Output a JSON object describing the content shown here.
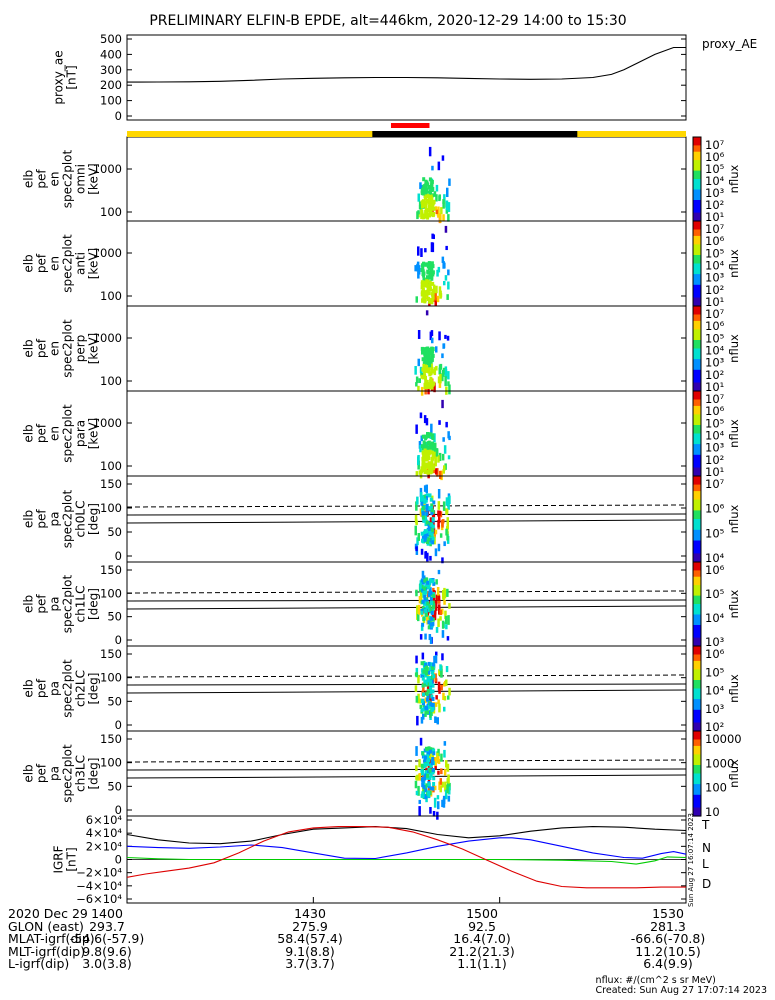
{
  "chart_data": {
    "title": "PRELIMINARY ELFIN-B EPDE, alt=446km, 2020-12-29 14:00 to 15:30",
    "time_ticks": [
      "1400",
      "1430",
      "1500",
      "1530"
    ],
    "date_label": "2020 Dec 29",
    "panels": [
      {
        "type": "line",
        "ylabel": [
          "proxy_ae",
          "[nT]"
        ],
        "yticks": [
          "500",
          "400",
          "300",
          "200",
          "100",
          "0"
        ],
        "ylim": [
          0,
          500
        ],
        "series": [
          {
            "name": "proxy_AE",
            "color": "#000000",
            "x": [
              0,
              2,
              5,
              10,
              15,
              20,
              25,
              30,
              35,
              40,
              45,
              50,
              55,
              60,
              65,
              70,
              75,
              78,
              80,
              82,
              85,
              88,
              90
            ],
            "y": [
              220,
              220,
              221,
              222,
              225,
              232,
              240,
              245,
              248,
              250,
              250,
              248,
              244,
              240,
              238,
              240,
              250,
              270,
              300,
              340,
              400,
              445,
              445
            ]
          }
        ]
      },
      {
        "type": "heatmap",
        "ylabel": [
          "elb",
          "pef",
          "en",
          "spec2plot",
          "omni",
          "[keV]"
        ],
        "yticks": [
          "1000",
          "100"
        ],
        "zlabel": "nflux",
        "zticks": [
          "10⁷",
          "10⁶",
          "10⁵",
          "10⁴",
          "10³",
          "10²",
          "10¹"
        ]
      },
      {
        "type": "heatmap",
        "ylabel": [
          "elb",
          "pef",
          "en",
          "spec2plot",
          "anti",
          "[keV]"
        ],
        "yticks": [
          "1000",
          "100"
        ],
        "zlabel": "nflux",
        "zticks": [
          "10⁷",
          "10⁶",
          "10⁵",
          "10⁴",
          "10³",
          "10²",
          "10¹"
        ]
      },
      {
        "type": "heatmap",
        "ylabel": [
          "elb",
          "pef",
          "en",
          "spec2plot",
          "perp",
          "[keV]"
        ],
        "yticks": [
          "1000",
          "100"
        ],
        "zlabel": "nflux",
        "zticks": [
          "10⁷",
          "10⁶",
          "10⁵",
          "10⁴",
          "10³",
          "10²",
          "10¹"
        ]
      },
      {
        "type": "heatmap",
        "ylabel": [
          "elb",
          "pef",
          "en",
          "spec2plot",
          "para",
          "[keV]"
        ],
        "yticks": [
          "1000",
          "100"
        ],
        "zlabel": "nflux",
        "zticks": [
          "10⁷",
          "10⁶",
          "10⁵",
          "10⁴",
          "10³",
          "10²",
          "10¹"
        ]
      },
      {
        "type": "heatmap",
        "ylabel": [
          "elb",
          "pef",
          "pa",
          "spec2plot",
          "ch0LC",
          "[deg]"
        ],
        "yticks": [
          "150",
          "100",
          "50",
          "0"
        ],
        "zlabel": "nflux",
        "zticks": [
          "10⁷",
          "10⁶",
          "10⁵",
          "10⁴"
        ]
      },
      {
        "type": "heatmap",
        "ylabel": [
          "elb",
          "pef",
          "pa",
          "spec2plot",
          "ch1LC",
          "[deg]"
        ],
        "yticks": [
          "150",
          "100",
          "50",
          "0"
        ],
        "zlabel": "nflux",
        "zticks": [
          "10⁶",
          "10⁵",
          "10⁴",
          "10³"
        ]
      },
      {
        "type": "heatmap",
        "ylabel": [
          "elb",
          "pef",
          "pa",
          "spec2plot",
          "ch2LC",
          "[deg]"
        ],
        "yticks": [
          "150",
          "100",
          "50",
          "0"
        ],
        "zlabel": "nflux",
        "zticks": [
          "10⁶",
          "10⁵",
          "10⁴",
          "10³",
          "10²"
        ]
      },
      {
        "type": "heatmap",
        "ylabel": [
          "elb",
          "pef",
          "pa",
          "spec2plot",
          "ch3LC",
          "[deg]"
        ],
        "yticks": [
          "150",
          "100",
          "50",
          "0"
        ],
        "zlabel": "nflux",
        "zticks": [
          "10000",
          "1000",
          "100",
          "10"
        ]
      },
      {
        "type": "line",
        "ylabel": [
          "IGRF",
          "[nT]"
        ],
        "yticks": [
          "6×10⁴",
          "4×10⁴",
          "2×10⁴",
          "0",
          "−2×10⁴",
          "−4×10⁴",
          "−6×10⁴"
        ],
        "ylim": [
          -60000,
          60000
        ],
        "series": [
          {
            "name": "T",
            "color": "#000000",
            "x": [
              0,
              5,
              10,
              15,
              20,
              25,
              30,
              35,
              40,
              45,
              50,
              55,
              60,
              65,
              70,
              75,
              80,
              85,
              90
            ],
            "y": [
              38000,
              30000,
              25000,
              24000,
              28000,
              38000,
              46000,
              48000,
              50000,
              47000,
              38000,
              33000,
              36000,
              43000,
              48000,
              50000,
              49000,
              46000,
              44000
            ]
          },
          {
            "name": "N",
            "color": "#0000ff",
            "x": [
              0,
              5,
              10,
              15,
              20,
              25,
              30,
              35,
              40,
              45,
              50,
              55,
              60,
              62,
              65,
              70,
              75,
              80,
              83,
              86,
              88,
              90
            ],
            "y": [
              20000,
              18000,
              17000,
              19000,
              22000,
              18000,
              10000,
              2000,
              1500,
              10000,
              20000,
              28000,
              33000,
              33000,
              30000,
              20000,
              10000,
              3000,
              2000,
              9000,
              12000,
              8000
            ]
          },
          {
            "name": "L",
            "color": "#00cc00",
            "x": [
              0,
              5,
              10,
              20,
              30,
              40,
              50,
              60,
              70,
              78,
              82,
              85,
              87,
              90
            ],
            "y": [
              3000,
              1000,
              0,
              0,
              0,
              0,
              0,
              0,
              -1000,
              -3000,
              -7000,
              -2000,
              4000,
              3000
            ]
          },
          {
            "name": "D",
            "color": "#dd0000",
            "x": [
              0,
              3,
              6,
              10,
              14,
              18,
              22,
              26,
              30,
              34,
              38,
              42,
              46,
              50,
              54,
              58,
              62,
              66,
              70,
              74,
              78,
              82,
              86,
              90
            ],
            "y": [
              -27000,
              -22000,
              -18000,
              -13000,
              -5000,
              10000,
              28000,
              42000,
              48000,
              50000,
              50000,
              49000,
              42000,
              30000,
              16000,
              -1000,
              -18000,
              -33000,
              -41000,
              -43000,
              -43000,
              -43000,
              -42000,
              -42000
            ]
          }
        ]
      }
    ],
    "footer": {
      "rows": [
        {
          "label": "2020 Dec 29",
          "v": [
            "1400",
            "1430",
            "1500",
            "1530"
          ]
        },
        {
          "label": "GLON (east)",
          "v": [
            "293.7",
            "275.9",
            "92.5",
            "281.3"
          ]
        },
        {
          "label": "MLAT-igrf(dip)",
          "v": [
            "-54.6(-57.9)",
            "58.4(57.4)",
            "16.4(7.0)",
            "-66.6(-70.8)"
          ]
        },
        {
          "label": "MLT-igrf(dip)",
          "v": [
            "9.8(9.6)",
            "9.1(8.8)",
            "21.2(21.3)",
            "11.2(10.5)"
          ]
        },
        {
          "label": "L-igrf(dip)",
          "v": [
            "3.0(3.8)",
            "3.7(3.7)",
            "1.1(1.1)",
            "6.4(9.9)"
          ]
        }
      ],
      "units_note": "nflux: #/(cm^2 s sr MeV)",
      "created": "Created: Sun Aug 27 17:07:14 2023",
      "rot_stamp": "Sun Aug 27 16:07:14 2023"
    },
    "colors": {
      "sci_bar": "#ffd700",
      "eclipse_bar": "#000000",
      "science_zone": "#ff0000"
    }
  }
}
